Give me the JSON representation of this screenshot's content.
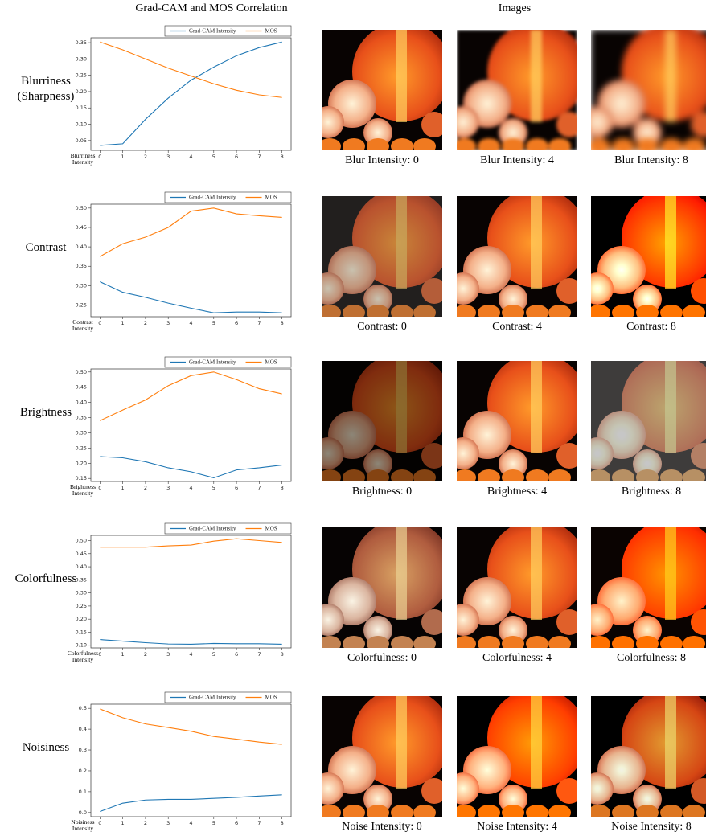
{
  "headers": {
    "left": "Grad-CAM and MOS Correlation",
    "right": "Images"
  },
  "rows": [
    {
      "label": "Blurriness (Sharpness)",
      "captions": [
        "Blur Intensity: 0",
        "Blur Intensity: 4",
        "Blur Intensity: 8"
      ]
    },
    {
      "label": "Contrast",
      "captions": [
        "Contrast: 0",
        "Contrast: 4",
        "Contrast: 8"
      ]
    },
    {
      "label": "Brightness",
      "captions": [
        "Brightness: 0",
        "Brightness: 4",
        "Brightness: 8"
      ]
    },
    {
      "label": "Colorfulness",
      "captions": [
        "Colorfulness: 0",
        "Colorfulness: 4",
        "Colorfulness: 8"
      ]
    },
    {
      "label": "Noisiness",
      "captions": [
        "Noise Intensity: 0",
        "Noise Intensity: 4",
        "Noise Intensity: 8"
      ]
    }
  ],
  "chart_data": [
    {
      "type": "line",
      "xlabel": "Blurriness Intensity",
      "x": [
        0,
        1,
        2,
        3,
        4,
        5,
        6,
        7,
        8
      ],
      "xlim": [
        -0.4,
        8.4
      ],
      "xticks": [
        0,
        1,
        2,
        3,
        4,
        5,
        6,
        7,
        8
      ],
      "ylim": [
        0.02,
        0.365
      ],
      "yticks": [
        0.05,
        {
          "value": 0.1,
          "label": "0.10"
        },
        0.15,
        {
          "value": 0.2,
          "label": "0.20"
        },
        0.25,
        {
          "value": 0.3,
          "label": "0.30"
        },
        0.35
      ],
      "legend": "upper right",
      "series": [
        {
          "name": "Grad-CAM Intensity",
          "color": "#1f77b4",
          "values": [
            0.035,
            0.04,
            0.115,
            0.18,
            0.235,
            0.275,
            0.31,
            0.335,
            0.352
          ]
        },
        {
          "name": "MOS",
          "color": "#ff7f0e",
          "values": [
            0.352,
            0.328,
            0.3,
            0.272,
            0.248,
            0.224,
            0.204,
            0.19,
            0.182
          ]
        }
      ]
    },
    {
      "type": "line",
      "xlabel": "Contrast Intensity",
      "x": [
        0,
        1,
        2,
        3,
        4,
        5,
        6,
        7,
        8
      ],
      "xlim": [
        -0.4,
        8.4
      ],
      "xticks": [
        0,
        1,
        2,
        3,
        4,
        5,
        6,
        7,
        8
      ],
      "ylim": [
        0.22,
        0.51
      ],
      "yticks": [
        0.25,
        {
          "value": 0.3,
          "label": "0.30"
        },
        0.35,
        {
          "value": 0.4,
          "label": "0.40"
        },
        0.45,
        {
          "value": 0.5,
          "label": "0.50"
        }
      ],
      "legend": "upper right",
      "series": [
        {
          "name": "Grad-CAM Intensity",
          "color": "#1f77b4",
          "values": [
            0.31,
            0.283,
            0.27,
            0.255,
            0.242,
            0.23,
            0.232,
            0.232,
            0.23
          ]
        },
        {
          "name": "MOS",
          "color": "#ff7f0e",
          "values": [
            0.375,
            0.408,
            0.425,
            0.45,
            0.492,
            0.5,
            0.485,
            0.48,
            0.476
          ]
        }
      ]
    },
    {
      "type": "line",
      "xlabel": "Brightness Intensity",
      "x": [
        0,
        1,
        2,
        3,
        4,
        5,
        6,
        7,
        8
      ],
      "xlim": [
        -0.4,
        8.4
      ],
      "xticks": [
        0,
        1,
        2,
        3,
        4,
        5,
        6,
        7,
        8
      ],
      "ylim": [
        0.14,
        0.51
      ],
      "yticks": [
        0.15,
        {
          "value": 0.2,
          "label": "0.20"
        },
        0.25,
        {
          "value": 0.3,
          "label": "0.30"
        },
        0.35,
        {
          "value": 0.4,
          "label": "0.40"
        },
        0.45,
        {
          "value": 0.5,
          "label": "0.50"
        }
      ],
      "legend": "upper right",
      "series": [
        {
          "name": "Grad-CAM Intensity",
          "color": "#1f77b4",
          "values": [
            0.222,
            0.218,
            0.205,
            0.185,
            0.172,
            0.152,
            0.178,
            0.185,
            0.194
          ]
        },
        {
          "name": "MOS",
          "color": "#ff7f0e",
          "values": [
            0.34,
            0.375,
            0.408,
            0.455,
            0.488,
            0.5,
            0.475,
            0.445,
            0.428
          ]
        }
      ]
    },
    {
      "type": "line",
      "xlabel": "Colorfulness Intensity",
      "x": [
        0,
        1,
        2,
        3,
        4,
        5,
        6,
        7,
        8
      ],
      "xlim": [
        -0.4,
        8.4
      ],
      "xticks": [
        0,
        1,
        2,
        3,
        4,
        5,
        6,
        7,
        8
      ],
      "ylim": [
        0.09,
        0.52
      ],
      "yticks": [
        {
          "value": 0.1,
          "label": "0.10"
        },
        0.15,
        {
          "value": 0.2,
          "label": "0.20"
        },
        0.25,
        {
          "value": 0.3,
          "label": "0.30"
        },
        0.35,
        {
          "value": 0.4,
          "label": "0.40"
        },
        0.45,
        {
          "value": 0.5,
          "label": "0.50"
        }
      ],
      "legend": "upper right",
      "series": [
        {
          "name": "Grad-CAM Intensity",
          "color": "#1f77b4",
          "values": [
            0.122,
            0.116,
            0.11,
            0.105,
            0.104,
            0.107,
            0.106,
            0.106,
            0.104
          ]
        },
        {
          "name": "MOS",
          "color": "#ff7f0e",
          "values": [
            0.475,
            0.475,
            0.475,
            0.48,
            0.483,
            0.498,
            0.507,
            0.5,
            0.493
          ]
        }
      ]
    },
    {
      "type": "line",
      "xlabel": "Noisiness Intensity",
      "x": [
        0,
        1,
        2,
        3,
        4,
        5,
        6,
        7,
        8
      ],
      "xlim": [
        -0.4,
        8.4
      ],
      "xticks": [
        0,
        1,
        2,
        3,
        4,
        5,
        6,
        7,
        8
      ],
      "ylim": [
        -0.02,
        0.52
      ],
      "yticks": [
        {
          "value": 0,
          "label": "0.0"
        },
        0.1,
        0.2,
        0.3,
        0.4,
        0.5
      ],
      "legend": "upper right",
      "series": [
        {
          "name": "Grad-CAM Intensity",
          "color": "#1f77b4",
          "values": [
            0.005,
            0.045,
            0.06,
            0.063,
            0.063,
            0.068,
            0.073,
            0.079,
            0.085
          ]
        },
        {
          "name": "MOS",
          "color": "#ff7f0e",
          "values": [
            0.497,
            0.455,
            0.425,
            0.408,
            0.39,
            0.365,
            0.352,
            0.338,
            0.327
          ]
        }
      ]
    }
  ]
}
